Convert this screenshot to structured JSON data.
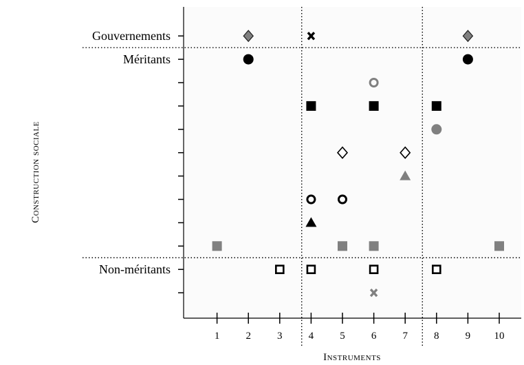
{
  "chart_data": {
    "type": "scatter",
    "xlabel": "Instruments",
    "ylabel": "Construction sociale",
    "x_ticks": [
      "1",
      "2",
      "3",
      "4",
      "5",
      "6",
      "7",
      "8",
      "9",
      "10"
    ],
    "xlim": [
      0,
      11
    ],
    "ylim": [
      0,
      12.5
    ],
    "y_tick_count": 12,
    "grid": false,
    "group_labels": [
      {
        "text": "Gouvernements",
        "y": 12
      },
      {
        "text": "Méritants",
        "y": 11
      },
      {
        "text": "Non-méritants",
        "y": 2
      }
    ],
    "h_dividers_y": [
      11.5,
      2.5
    ],
    "v_dividers_x": [
      3.7,
      7.55
    ],
    "points": [
      {
        "x": 2,
        "y": 12,
        "marker": "diamond-filled",
        "color": "#808080"
      },
      {
        "x": 4,
        "y": 12,
        "marker": "x",
        "color": "#000000"
      },
      {
        "x": 9,
        "y": 12,
        "marker": "diamond-filled",
        "color": "#808080"
      },
      {
        "x": 2,
        "y": 11,
        "marker": "circle-filled",
        "color": "#000000"
      },
      {
        "x": 9,
        "y": 11,
        "marker": "circle-filled",
        "color": "#000000"
      },
      {
        "x": 6,
        "y": 10,
        "marker": "circle-open",
        "color": "#808080"
      },
      {
        "x": 4,
        "y": 9,
        "marker": "square-filled",
        "color": "#000000"
      },
      {
        "x": 6,
        "y": 9,
        "marker": "square-filled",
        "color": "#000000"
      },
      {
        "x": 8,
        "y": 9,
        "marker": "square-filled",
        "color": "#000000"
      },
      {
        "x": 8,
        "y": 8,
        "marker": "circle-filled",
        "color": "#808080"
      },
      {
        "x": 5,
        "y": 7,
        "marker": "diamond-open",
        "color": "#000000"
      },
      {
        "x": 7,
        "y": 7,
        "marker": "diamond-open",
        "color": "#000000"
      },
      {
        "x": 7,
        "y": 6,
        "marker": "triangle-filled",
        "color": "#808080"
      },
      {
        "x": 4,
        "y": 5,
        "marker": "circle-open",
        "color": "#000000"
      },
      {
        "x": 5,
        "y": 5,
        "marker": "circle-open",
        "color": "#000000"
      },
      {
        "x": 4,
        "y": 4,
        "marker": "triangle-filled",
        "color": "#000000"
      },
      {
        "x": 1,
        "y": 3,
        "marker": "square-filled",
        "color": "#808080"
      },
      {
        "x": 5,
        "y": 3,
        "marker": "square-filled",
        "color": "#808080"
      },
      {
        "x": 6,
        "y": 3,
        "marker": "square-filled",
        "color": "#808080"
      },
      {
        "x": 10,
        "y": 3,
        "marker": "square-filled",
        "color": "#808080"
      },
      {
        "x": 3,
        "y": 2,
        "marker": "square-open",
        "color": "#000000"
      },
      {
        "x": 4,
        "y": 2,
        "marker": "square-open",
        "color": "#000000"
      },
      {
        "x": 6,
        "y": 2,
        "marker": "square-open",
        "color": "#000000"
      },
      {
        "x": 8,
        "y": 2,
        "marker": "square-open",
        "color": "#000000"
      },
      {
        "x": 6,
        "y": 1,
        "marker": "x",
        "color": "#808080"
      }
    ]
  }
}
